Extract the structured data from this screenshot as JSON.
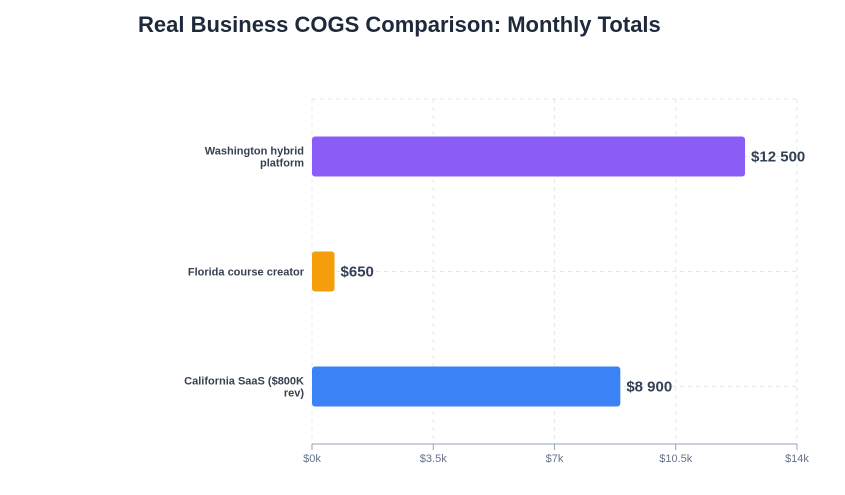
{
  "chart_data": {
    "type": "bar",
    "orientation": "horizontal",
    "title": "Real Business COGS Comparison: Monthly Totals",
    "categories": [
      [
        "Washington hybrid",
        "platform"
      ],
      [
        "Florida course creator"
      ],
      [
        "California SaaS ($800K",
        "rev)"
      ]
    ],
    "values": [
      12500,
      650,
      8900
    ],
    "value_labels": [
      "$12 500",
      "$650",
      "$8 900"
    ],
    "colors": [
      "#8b5cf6",
      "#f59e0b",
      "#3b82f6"
    ],
    "xlim": [
      0,
      14000
    ],
    "x_ticks": [
      0,
      3500,
      7000,
      10500,
      14000
    ],
    "x_tick_labels": [
      "$0k",
      "$3.5k",
      "$7k",
      "$10.5k",
      "$14k"
    ],
    "grid": true,
    "grid_color": "#e5e7eb",
    "axis_color": "#94a3b8"
  }
}
